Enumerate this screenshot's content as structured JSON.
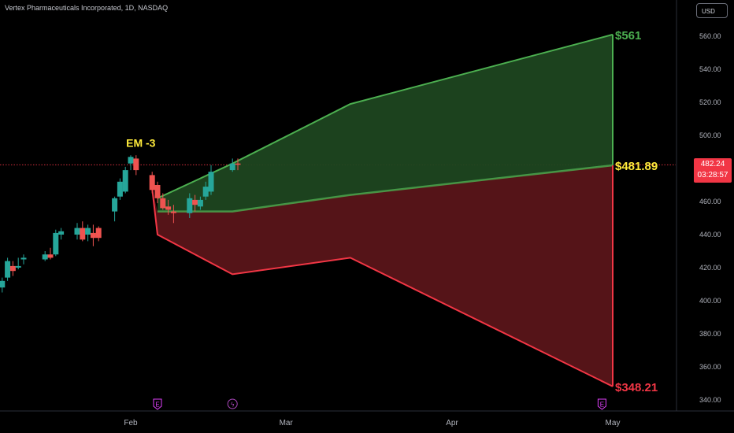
{
  "header": {
    "symbol_title": "Vertex Pharmaceuticals Incorporated, 1D, NASDAQ",
    "currency_button": "USD"
  },
  "price_tag": {
    "price": "482.24",
    "countdown": "03:28:57"
  },
  "colors": {
    "up": "#26a69a",
    "down": "#ef5350",
    "upper_fill": "#1e4620",
    "upper_line": "#4caf50",
    "lower_fill": "#5a1519",
    "lower_line": "#f23645",
    "mid_line": "#4caf50",
    "label_green": "#4caf50",
    "label_yellow": "#ffeb3b",
    "label_red": "#f23645"
  },
  "chart_data": {
    "type": "candlestick",
    "title": "Vertex Pharmaceuticals Incorporated, 1D, NASDAQ",
    "y_axis": {
      "min": 340,
      "max": 560,
      "ticks": [
        340,
        360,
        380,
        400,
        420,
        440,
        460,
        480,
        500,
        520,
        540,
        560
      ],
      "side": "right"
    },
    "x_axis": {
      "labels": [
        "Feb",
        "Mar",
        "Apr",
        "May"
      ],
      "label_dates": [
        "2024-02-01",
        "2024-03-01",
        "2024-04-01",
        "2024-05-01"
      ]
    },
    "candles": [
      {
        "date": "2024-01-02",
        "o": 407,
        "h": 412,
        "l": 404,
        "c": 409
      },
      {
        "date": "2024-01-03",
        "o": 409,
        "h": 413,
        "l": 400,
        "c": 405
      },
      {
        "date": "2024-01-04",
        "o": 405,
        "h": 414,
        "l": 402,
        "c": 411
      },
      {
        "date": "2024-01-05",
        "o": 412,
        "h": 412,
        "l": 397,
        "c": 408
      },
      {
        "date": "2024-01-08",
        "o": 408,
        "h": 414,
        "l": 405,
        "c": 412
      },
      {
        "date": "2024-01-09",
        "o": 414,
        "h": 426,
        "l": 412,
        "c": 424
      },
      {
        "date": "2024-01-10",
        "o": 421,
        "h": 424,
        "l": 415,
        "c": 418
      },
      {
        "date": "2024-01-11",
        "o": 420,
        "h": 426,
        "l": 419,
        "c": 421
      },
      {
        "date": "2024-01-12",
        "o": 425,
        "h": 428,
        "l": 422,
        "c": 426
      },
      {
        "date": "2024-01-16",
        "o": 425,
        "h": 430,
        "l": 424,
        "c": 428
      },
      {
        "date": "2024-01-17",
        "o": 428,
        "h": 432,
        "l": 425,
        "c": 426
      },
      {
        "date": "2024-01-18",
        "o": 428,
        "h": 443,
        "l": 427,
        "c": 441
      },
      {
        "date": "2024-01-19",
        "o": 440,
        "h": 444,
        "l": 437,
        "c": 442
      },
      {
        "date": "2024-01-22",
        "o": 440,
        "h": 447,
        "l": 437,
        "c": 444
      },
      {
        "date": "2024-01-23",
        "o": 444,
        "h": 448,
        "l": 436,
        "c": 437
      },
      {
        "date": "2024-01-24",
        "o": 440,
        "h": 446,
        "l": 436,
        "c": 444
      },
      {
        "date": "2024-01-25",
        "o": 441,
        "h": 446,
        "l": 433,
        "c": 438
      },
      {
        "date": "2024-01-26",
        "o": 444,
        "h": 445,
        "l": 436,
        "c": 438
      },
      {
        "date": "2024-01-29",
        "o": 454,
        "h": 463,
        "l": 448,
        "c": 462
      },
      {
        "date": "2024-01-30",
        "o": 463,
        "h": 474,
        "l": 461,
        "c": 472
      },
      {
        "date": "2024-01-31",
        "o": 466,
        "h": 481,
        "l": 465,
        "c": 479
      },
      {
        "date": "2024-02-01",
        "o": 483,
        "h": 488,
        "l": 479,
        "c": 487
      },
      {
        "date": "2024-02-02",
        "o": 486,
        "h": 488,
        "l": 476,
        "c": 479
      },
      {
        "date": "2024-02-05",
        "o": 476,
        "h": 478,
        "l": 465,
        "c": 467
      },
      {
        "date": "2024-02-06",
        "o": 470,
        "h": 472,
        "l": 459,
        "c": 462
      },
      {
        "date": "2024-02-07",
        "o": 462,
        "h": 465,
        "l": 455,
        "c": 456
      },
      {
        "date": "2024-02-08",
        "o": 457,
        "h": 461,
        "l": 452,
        "c": 455
      },
      {
        "date": "2024-02-09",
        "o": 454,
        "h": 458,
        "l": 447,
        "c": 453
      },
      {
        "date": "2024-02-12",
        "o": 453,
        "h": 465,
        "l": 450,
        "c": 462
      },
      {
        "date": "2024-02-13",
        "o": 461,
        "h": 464,
        "l": 454,
        "c": 458
      },
      {
        "date": "2024-02-14",
        "o": 457,
        "h": 463,
        "l": 455,
        "c": 461
      },
      {
        "date": "2024-02-15",
        "o": 463,
        "h": 472,
        "l": 461,
        "c": 469
      },
      {
        "date": "2024-02-16",
        "o": 466,
        "h": 482,
        "l": 464,
        "c": 478
      },
      {
        "date": "2024-02-20",
        "o": 479,
        "h": 486,
        "l": 478,
        "c": 483
      },
      {
        "date": "2024-02-21",
        "o": 483,
        "h": 486,
        "l": 479,
        "c": 482.24
      }
    ],
    "projection": {
      "start_date": "2024-02-06",
      "upper": [
        {
          "date": "2024-02-06",
          "value": 462
        },
        {
          "date": "2024-02-20",
          "value": 483
        },
        {
          "date": "2024-03-13",
          "value": 519
        },
        {
          "date": "2024-05-01",
          "value": 561
        }
      ],
      "middle": [
        {
          "date": "2024-02-06",
          "value": 454
        },
        {
          "date": "2024-02-20",
          "value": 454
        },
        {
          "date": "2024-03-13",
          "value": 464
        },
        {
          "date": "2024-05-01",
          "value": 481.89
        }
      ],
      "lower": [
        {
          "date": "2024-02-05",
          "value": 468
        },
        {
          "date": "2024-02-06",
          "value": 440
        },
        {
          "date": "2024-02-20",
          "value": 416
        },
        {
          "date": "2024-03-13",
          "value": 426
        },
        {
          "date": "2024-05-01",
          "value": 348.21
        }
      ]
    },
    "current_price": 482.24,
    "annotations": [
      {
        "text": "EM -3",
        "date": "2024-02-02",
        "value": 493,
        "color": "#ffeb3b"
      },
      {
        "text": "$561",
        "date": "2024-05-01",
        "value": 561,
        "color": "#4caf50"
      },
      {
        "text": "$481.89",
        "date": "2024-05-01",
        "value": 481.89,
        "color": "#ffeb3b"
      },
      {
        "text": "$348.21",
        "date": "2024-05-01",
        "value": 348.21,
        "color": "#f23645"
      }
    ],
    "event_markers": [
      {
        "type": "earnings",
        "glyph": "E",
        "date": "2024-02-06",
        "color": "#e040fb"
      },
      {
        "type": "dividend",
        "glyph": "ϟ",
        "date": "2024-02-20",
        "color": "#ab47bc"
      },
      {
        "type": "earnings",
        "glyph": "E",
        "date": "2024-04-29",
        "color": "#e040fb"
      }
    ],
    "grid": false
  }
}
